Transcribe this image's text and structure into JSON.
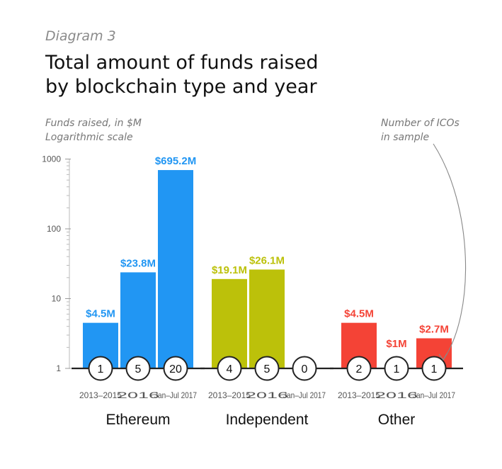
{
  "header": {
    "eyebrow": "Diagram 3",
    "title_line1": "Total amount of funds raised",
    "title_line2": "by blockchain type and year"
  },
  "axis_note": {
    "line1": "Funds raised, in $M",
    "line2": "Logarithmic scale"
  },
  "annotation": {
    "line1": "Number of ICOs",
    "line2": "in sample"
  },
  "colors": {
    "Ethereum": "#2196f3",
    "Independent": "#bcc10a",
    "Other": "#f44336",
    "axis": "#222222",
    "tick_label": "#555555"
  },
  "chart_data": {
    "type": "bar",
    "yscale": "log",
    "ylim": [
      1,
      1000
    ],
    "yticks": [
      {
        "value": 1,
        "label": "1"
      },
      {
        "value": 10,
        "label": "10"
      },
      {
        "value": 100,
        "label": "100"
      },
      {
        "value": 1000,
        "label": "1000"
      }
    ],
    "categories": [
      "2013–2015",
      "2016",
      "Jan–Jul 2017"
    ],
    "groups": [
      {
        "name": "Ethereum",
        "values": [
          4.5,
          23.8,
          695.2
        ],
        "value_labels": [
          "$4.5M",
          "$23.8M",
          "$695.2M"
        ],
        "ico_counts": [
          "1",
          "5",
          "20"
        ]
      },
      {
        "name": "Independent",
        "values": [
          19.1,
          26.1,
          0
        ],
        "value_labels": [
          "$19.1M",
          "$26.1M",
          ""
        ],
        "ico_counts": [
          "4",
          "5",
          "0"
        ]
      },
      {
        "name": "Other",
        "values": [
          4.5,
          1,
          2.7
        ],
        "value_labels": [
          "$4.5M",
          "$1M",
          "$2.7M"
        ],
        "ico_counts": [
          "2",
          "1",
          "1"
        ]
      }
    ]
  }
}
